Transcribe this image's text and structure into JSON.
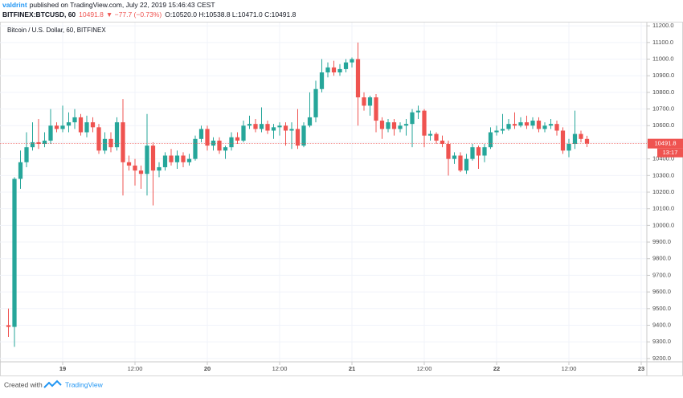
{
  "header": {
    "user": "valdrint",
    "published": "published on TradingView.com, July 22, 2019 15:46:43 CEST",
    "symbol": "BITFINEX:BTCUSD, 60",
    "last": "10491.8",
    "change": "▼ −77.7 (−0.73%)",
    "ohlc": "O:10520.0 H:10538.8 L:10471.0 C:10491.8"
  },
  "footer": {
    "created": "Created with",
    "brand": "TradingView"
  },
  "chart_data": {
    "type": "candlestick",
    "title": "Bitcoin / U.S. Dollar, 60, BITFINEX",
    "countdown": "13:17",
    "up_color": "#26a69a",
    "down_color": "#ef5350",
    "grid": true,
    "x": [
      "18 15:00",
      "18 16:00",
      "18 17:00",
      "18 18:00",
      "18 19:00",
      "18 20:00",
      "18 21:00",
      "18 22:00",
      "18 23:00",
      "19 00:00",
      "19 01:00",
      "19 02:00",
      "19 03:00",
      "19 04:00",
      "19 05:00",
      "19 06:00",
      "19 07:00",
      "19 08:00",
      "19 09:00",
      "19 10:00",
      "19 11:00",
      "19 12:00",
      "19 13:00",
      "19 14:00",
      "19 15:00",
      "19 16:00",
      "19 17:00",
      "19 18:00",
      "19 19:00",
      "19 20:00",
      "19 21:00",
      "19 22:00",
      "19 23:00",
      "20 00:00",
      "20 01:00",
      "20 02:00",
      "20 03:00",
      "20 04:00",
      "20 05:00",
      "20 06:00",
      "20 07:00",
      "20 08:00",
      "20 09:00",
      "20 10:00",
      "20 11:00",
      "20 12:00",
      "20 13:00",
      "20 14:00",
      "20 15:00",
      "20 16:00",
      "20 17:00",
      "20 18:00",
      "20 19:00",
      "20 20:00",
      "20 21:00",
      "20 22:00",
      "20 23:00",
      "21 00:00",
      "21 01:00",
      "21 02:00",
      "21 03:00",
      "21 04:00",
      "21 05:00",
      "21 06:00",
      "21 07:00",
      "21 08:00",
      "21 09:00",
      "21 10:00",
      "21 11:00",
      "21 12:00",
      "21 13:00",
      "21 14:00",
      "21 15:00",
      "21 16:00",
      "21 17:00",
      "21 18:00",
      "21 19:00",
      "21 20:00",
      "21 21:00",
      "21 22:00",
      "21 23:00",
      "22 00:00",
      "22 01:00",
      "22 02:00",
      "22 03:00",
      "22 04:00",
      "22 05:00",
      "22 06:00",
      "22 07:00",
      "22 08:00",
      "22 09:00",
      "22 10:00",
      "22 11:00",
      "22 12:00",
      "22 13:00",
      "22 14:00",
      "22 15:00"
    ],
    "open": [
      9400,
      9390,
      10280,
      10380,
      10470,
      10500,
      10490,
      10510,
      10600,
      10580,
      10600,
      10620,
      10650,
      10560,
      10620,
      10590,
      10450,
      10520,
      10470,
      10620,
      10380,
      10360,
      10330,
      10310,
      10480,
      10330,
      10350,
      10420,
      10380,
      10420,
      10380,
      10400,
      10520,
      10580,
      10480,
      10510,
      10450,
      10470,
      10530,
      10510,
      10600,
      10610,
      10580,
      10610,
      10570,
      10590,
      10600,
      10570,
      10580,
      10480,
      10600,
      10650,
      10820,
      10920,
      10950,
      10920,
      10940,
      10980,
      11000,
      10770,
      10720,
      10770,
      10630,
      10580,
      10620,
      10580,
      10600,
      10610,
      10680,
      10690,
      10540,
      10550,
      10510,
      10490,
      10400,
      10420,
      10330,
      10400,
      10470,
      10420,
      10470,
      10560,
      10570,
      10580,
      10610,
      10600,
      10620,
      10600,
      10630,
      10580,
      10600,
      10610,
      10570,
      10450,
      10490,
      10550,
      10520
    ],
    "high": [
      9500,
      10290,
      10450,
      10560,
      10620,
      10640,
      10560,
      10700,
      10620,
      10720,
      10680,
      10700,
      10670,
      10660,
      10650,
      10610,
      10560,
      10560,
      10650,
      10760,
      10420,
      10400,
      10360,
      10670,
      10500,
      10380,
      10440,
      10460,
      10450,
      10440,
      10430,
      10540,
      10600,
      10600,
      10530,
      10530,
      10480,
      10560,
      10560,
      10630,
      10660,
      10640,
      10710,
      10630,
      10610,
      10620,
      10620,
      10620,
      10700,
      10620,
      10800,
      10870,
      11000,
      10980,
      10990,
      10970,
      11000,
      11010,
      11100,
      10800,
      10780,
      10790,
      10650,
      10640,
      10640,
      10620,
      10640,
      10700,
      10720,
      10700,
      10570,
      10560,
      10540,
      10510,
      10440,
      10440,
      10430,
      10490,
      10480,
      10490,
      10590,
      10600,
      10670,
      10640,
      10680,
      10650,
      10660,
      10650,
      10650,
      10620,
      10640,
      10630,
      10590,
      10520,
      10690,
      10570,
      10538.8
    ],
    "low": [
      9330,
      9270,
      10220,
      10350,
      10450,
      10460,
      10470,
      10490,
      10560,
      10560,
      10560,
      10580,
      10540,
      10530,
      10560,
      10430,
      10430,
      10440,
      10450,
      10180,
      10330,
      10240,
      10220,
      10180,
      10120,
      10290,
      10330,
      10360,
      10340,
      10350,
      10360,
      10390,
      10500,
      10450,
      10450,
      10430,
      10400,
      10450,
      10490,
      10500,
      10580,
      10560,
      10560,
      10550,
      10520,
      10540,
      10480,
      10460,
      10460,
      10470,
      10590,
      10620,
      10800,
      10890,
      10900,
      10900,
      10920,
      10950,
      10600,
      10690,
      10660,
      10560,
      10520,
      10560,
      10540,
      10560,
      10540,
      10470,
      10640,
      10470,
      10510,
      10490,
      10470,
      10300,
      10370,
      10320,
      10310,
      10390,
      10340,
      10380,
      10460,
      10540,
      10550,
      10570,
      10580,
      10590,
      10580,
      10580,
      10560,
      10560,
      10580,
      10540,
      10430,
      10410,
      10460,
      10500,
      10471
    ],
    "close": [
      9390,
      10280,
      10380,
      10470,
      10500,
      10490,
      10510,
      10600,
      10580,
      10600,
      10620,
      10650,
      10560,
      10620,
      10590,
      10450,
      10520,
      10470,
      10620,
      10380,
      10360,
      10330,
      10310,
      10480,
      10330,
      10350,
      10420,
      10380,
      10420,
      10380,
      10400,
      10520,
      10580,
      10480,
      10510,
      10450,
      10470,
      10530,
      10510,
      10600,
      10610,
      10580,
      10610,
      10570,
      10590,
      10600,
      10570,
      10580,
      10480,
      10600,
      10650,
      10820,
      10920,
      10950,
      10920,
      10940,
      10980,
      11000,
      10770,
      10720,
      10770,
      10630,
      10580,
      10620,
      10580,
      10600,
      10610,
      10680,
      10690,
      10540,
      10550,
      10510,
      10490,
      10400,
      10420,
      10330,
      10400,
      10470,
      10420,
      10470,
      10560,
      10570,
      10580,
      10610,
      10600,
      10620,
      10600,
      10630,
      10580,
      10600,
      10610,
      10570,
      10450,
      10490,
      10550,
      10520,
      10491.8
    ],
    "xlim": [
      "18 13:36",
      "23 00:56"
    ],
    "xticks": [
      {
        "value": "19 00:00",
        "label": "19"
      },
      {
        "value": "19 12:00",
        "label": "12:00"
      },
      {
        "value": "20 00:00",
        "label": "20"
      },
      {
        "value": "20 12:00",
        "label": "12:00"
      },
      {
        "value": "21 00:00",
        "label": "21"
      },
      {
        "value": "21 12:00",
        "label": "12:00"
      },
      {
        "value": "22 00:00",
        "label": "22"
      },
      {
        "value": "22 12:00",
        "label": "12:00"
      },
      {
        "value": "23 00:00",
        "label": "23"
      }
    ],
    "ylim": [
      9180,
      11220
    ],
    "yticks": [
      {
        "value": 9200,
        "label": "9200.0"
      },
      {
        "value": 9300,
        "label": "9300.0"
      },
      {
        "value": 9400,
        "label": "9400.0"
      },
      {
        "value": 9500,
        "label": "9500.0"
      },
      {
        "value": 9600,
        "label": "9600.0"
      },
      {
        "value": 9700,
        "label": "9700.0"
      },
      {
        "value": 9800,
        "label": "9800.0"
      },
      {
        "value": 9900,
        "label": "9900.0"
      },
      {
        "value": 10000,
        "label": "10000.0"
      },
      {
        "value": 10100,
        "label": "10100.0"
      },
      {
        "value": 10200,
        "label": "10200.0"
      },
      {
        "value": 10300,
        "label": "10300.0"
      },
      {
        "value": 10400,
        "label": "10400.0"
      },
      {
        "value": 10500,
        "label": "10500.0"
      },
      {
        "value": 10600,
        "label": "10600.0"
      },
      {
        "value": 10700,
        "label": "10700.0"
      },
      {
        "value": 10800,
        "label": "10800.0"
      },
      {
        "value": 10900,
        "label": "10900.0"
      },
      {
        "value": 11000,
        "label": "11000.0"
      },
      {
        "value": 11100,
        "label": "11100.0"
      },
      {
        "value": 11200,
        "label": "11200.0"
      }
    ]
  }
}
